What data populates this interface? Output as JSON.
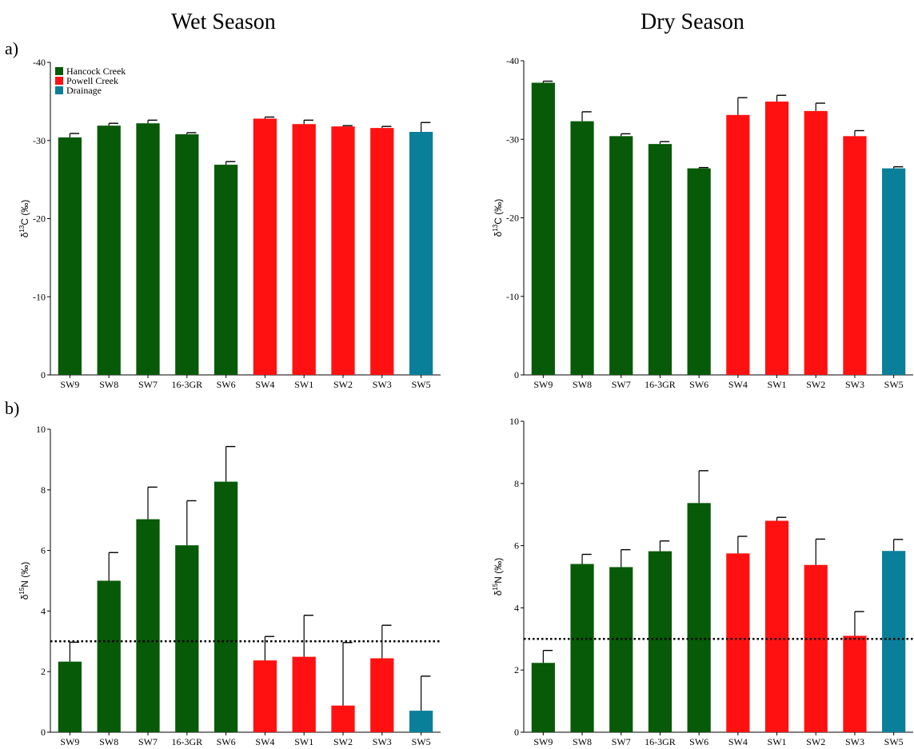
{
  "titles": {
    "wet": "Wet Season",
    "dry": "Dry Season"
  },
  "panel_labels": {
    "a": "a)",
    "b": "b)"
  },
  "colors": {
    "hancock": "#075a07",
    "powell": "#ff1111",
    "drainage": "#0a7f99",
    "reference_line": "#000000"
  },
  "legend": [
    {
      "label": "Hancock Creek",
      "group": "hancock"
    },
    {
      "label": "Powell Creek",
      "group": "powell"
    },
    {
      "label": "Drainage",
      "group": "drainage"
    }
  ],
  "chart_data": [
    {
      "id": "wet-d13c",
      "type": "bar",
      "title": "Wet Season",
      "ylabel": "δ13C (‰)",
      "ylim": [
        0,
        -40
      ],
      "yticks": [
        {
          "value": 0,
          "label": "0"
        },
        {
          "value": -10,
          "label": "-10"
        },
        {
          "value": -20,
          "label": "-20"
        },
        {
          "value": -30,
          "label": "-30"
        },
        {
          "value": -40,
          "label": "-40"
        }
      ],
      "categories": [
        "SW9",
        "SW8",
        "SW7",
        "16-3GR",
        "SW6",
        "SW4",
        "SW1",
        "SW2",
        "SW3",
        "SW5"
      ],
      "groups": [
        "hancock",
        "hancock",
        "hancock",
        "hancock",
        "hancock",
        "powell",
        "powell",
        "powell",
        "powell",
        "drainage"
      ],
      "values": [
        -30.4,
        -31.9,
        -32.2,
        -30.8,
        -26.9,
        -32.8,
        -32.1,
        -31.8,
        -31.6,
        -31.1
      ],
      "errors": [
        0.5,
        0.3,
        0.4,
        0.2,
        0.4,
        0.2,
        0.5,
        0.1,
        0.2,
        1.2
      ],
      "legend": true
    },
    {
      "id": "dry-d13c",
      "type": "bar",
      "title": "Dry Season",
      "ylabel": "δ13C (‰)",
      "ylim": [
        0,
        -40
      ],
      "yticks": [
        {
          "value": 0,
          "label": "0"
        },
        {
          "value": -10,
          "label": "-10"
        },
        {
          "value": -20,
          "label": "-20"
        },
        {
          "value": -30,
          "label": "-30"
        },
        {
          "value": -40,
          "label": "-40"
        }
      ],
      "categories": [
        "SW9",
        "SW8",
        "SW7",
        "16-3GR",
        "SW6",
        "SW4",
        "SW1",
        "SW2",
        "SW3",
        "SW5"
      ],
      "groups": [
        "hancock",
        "hancock",
        "hancock",
        "hancock",
        "hancock",
        "powell",
        "powell",
        "powell",
        "powell",
        "drainage"
      ],
      "values": [
        -37.2,
        -32.3,
        -30.4,
        -29.4,
        -26.3,
        -33.1,
        -34.8,
        -33.6,
        -30.4,
        -26.3
      ],
      "errors": [
        0.2,
        1.2,
        0.3,
        0.3,
        0.1,
        2.2,
        0.8,
        1.0,
        0.7,
        0.2
      ]
    },
    {
      "id": "wet-d15n",
      "type": "bar",
      "ylabel": "δ15N (‰)",
      "ylim": [
        0,
        10
      ],
      "yticks": [
        {
          "value": 0,
          "label": "0"
        },
        {
          "value": 2,
          "label": "2"
        },
        {
          "value": 4,
          "label": "4"
        },
        {
          "value": 6,
          "label": "6"
        },
        {
          "value": 8,
          "label": "8"
        },
        {
          "value": 10,
          "label": "10"
        }
      ],
      "categories": [
        "SW9",
        "SW8",
        "SW7",
        "16-3GR",
        "SW6",
        "SW4",
        "SW1",
        "SW2",
        "SW3",
        "SW5"
      ],
      "groups": [
        "hancock",
        "hancock",
        "hancock",
        "hancock",
        "hancock",
        "powell",
        "powell",
        "powell",
        "powell",
        "drainage"
      ],
      "values": [
        2.33,
        5.0,
        7.03,
        6.17,
        8.27,
        2.37,
        2.49,
        0.88,
        2.44,
        0.71
      ],
      "errors": [
        0.64,
        0.93,
        1.06,
        1.47,
        1.16,
        0.79,
        1.37,
        2.08,
        1.09,
        1.14
      ],
      "reference_line": 3.0
    },
    {
      "id": "dry-d15n",
      "type": "bar",
      "ylabel": "δ15N (‰)",
      "ylim": [
        0,
        10
      ],
      "yticks": [
        {
          "value": 0,
          "label": "0"
        },
        {
          "value": 2,
          "label": "2"
        },
        {
          "value": 4,
          "label": "4"
        },
        {
          "value": 6,
          "label": "6"
        },
        {
          "value": 8,
          "label": "8"
        },
        {
          "value": 10,
          "label": "10"
        }
      ],
      "categories": [
        "SW9",
        "SW8",
        "SW7",
        "16-3GR",
        "SW6",
        "SW4",
        "SW1",
        "SW2",
        "SW3",
        "SW5"
      ],
      "groups": [
        "hancock",
        "hancock",
        "hancock",
        "hancock",
        "hancock",
        "powell",
        "powell",
        "powell",
        "powell",
        "drainage"
      ],
      "values": [
        2.23,
        5.41,
        5.31,
        5.82,
        7.37,
        5.75,
        6.8,
        5.38,
        3.1,
        5.83
      ],
      "errors": [
        0.4,
        0.31,
        0.56,
        0.33,
        1.04,
        0.55,
        0.11,
        0.83,
        0.78,
        0.37
      ],
      "reference_line": 3.0
    }
  ]
}
